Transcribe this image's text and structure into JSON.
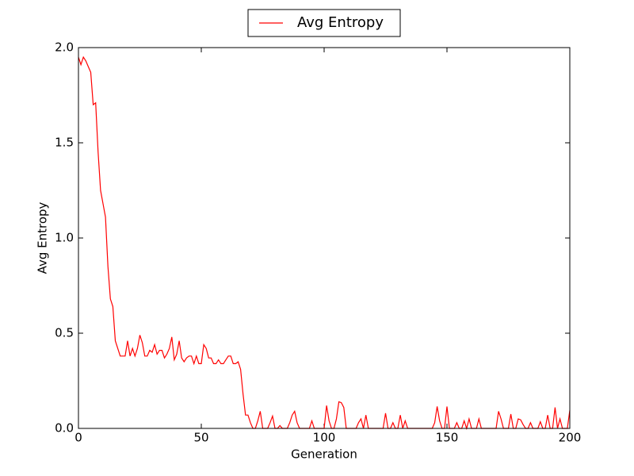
{
  "chart_data": {
    "type": "line",
    "x_label": "Generation",
    "y_label": "Avg Entropy",
    "x": [
      0,
      1,
      2,
      3,
      4,
      5,
      6,
      7,
      8,
      9,
      10,
      11,
      12,
      13,
      14,
      15,
      16,
      17,
      18,
      19,
      20,
      21,
      22,
      23,
      24,
      25,
      26,
      27,
      28,
      29,
      30,
      31,
      32,
      33,
      34,
      35,
      36,
      37,
      38,
      39,
      40,
      41,
      42,
      43,
      44,
      45,
      46,
      47,
      48,
      49,
      50,
      51,
      52,
      53,
      54,
      55,
      56,
      57,
      58,
      59,
      60,
      61,
      62,
      63,
      64,
      65,
      66,
      67,
      68,
      69,
      70,
      71,
      72,
      73,
      74,
      75,
      76,
      77,
      78,
      79,
      80,
      81,
      82,
      83,
      84,
      85,
      86,
      87,
      88,
      89,
      90,
      91,
      92,
      93,
      94,
      95,
      96,
      97,
      98,
      99,
      100,
      101,
      102,
      103,
      104,
      105,
      106,
      107,
      108,
      109,
      110,
      111,
      112,
      113,
      114,
      115,
      116,
      117,
      118,
      119,
      120,
      121,
      122,
      123,
      124,
      125,
      126,
      127,
      128,
      129,
      130,
      131,
      132,
      133,
      134,
      135,
      136,
      137,
      138,
      139,
      140,
      141,
      142,
      143,
      144,
      145,
      146,
      147,
      148,
      149,
      150,
      151,
      152,
      153,
      154,
      155,
      156,
      157,
      158,
      159,
      160,
      161,
      162,
      163,
      164,
      165,
      166,
      167,
      168,
      169,
      170,
      171,
      172,
      173,
      174,
      175,
      176,
      177,
      178,
      179,
      180,
      181,
      182,
      183,
      184,
      185,
      186,
      187,
      188,
      189,
      190,
      191,
      192,
      193,
      194,
      195,
      196,
      197,
      198,
      199,
      200
    ],
    "series": [
      {
        "name": "Avg Entropy",
        "color": "#ff0000",
        "values": [
          1.95,
          1.91,
          1.95,
          1.93,
          1.9,
          1.87,
          1.7,
          1.71,
          1.45,
          1.25,
          1.18,
          1.11,
          0.85,
          0.68,
          0.64,
          0.46,
          0.42,
          0.38,
          0.38,
          0.38,
          0.46,
          0.38,
          0.42,
          0.38,
          0.42,
          0.49,
          0.45,
          0.38,
          0.38,
          0.41,
          0.4,
          0.44,
          0.39,
          0.41,
          0.41,
          0.37,
          0.39,
          0.42,
          0.48,
          0.36,
          0.39,
          0.46,
          0.37,
          0.35,
          0.37,
          0.38,
          0.38,
          0.34,
          0.38,
          0.34,
          0.34,
          0.44,
          0.42,
          0.37,
          0.37,
          0.34,
          0.34,
          0.36,
          0.34,
          0.34,
          0.36,
          0.38,
          0.38,
          0.34,
          0.34,
          0.35,
          0.31,
          0.18,
          0.07,
          0.07,
          0.03,
          0,
          0,
          0.04,
          0.09,
          0,
          0,
          0,
          0.03,
          0.065,
          0,
          0,
          0.015,
          0,
          0,
          0,
          0.03,
          0.07,
          0.09,
          0.03,
          0,
          0,
          0,
          0,
          0,
          0.04,
          0,
          0,
          0,
          0,
          0,
          0.12,
          0.04,
          0,
          0,
          0.05,
          0.14,
          0.135,
          0.11,
          0,
          0,
          0,
          0,
          0,
          0.03,
          0.05,
          0,
          0.07,
          0,
          0,
          0,
          0,
          0,
          0,
          0,
          0.08,
          0,
          0,
          0.03,
          0,
          0,
          0.07,
          0,
          0.04,
          0,
          0,
          0,
          0,
          0,
          0,
          0,
          0,
          0,
          0,
          0,
          0.03,
          0.115,
          0.04,
          0,
          0,
          0.115,
          0,
          0,
          0,
          0.03,
          0,
          0,
          0.04,
          0,
          0.05,
          0,
          0,
          0,
          0.05,
          0,
          0,
          0,
          0,
          0,
          0,
          0,
          0.09,
          0.05,
          0,
          0,
          0,
          0.075,
          0,
          0,
          0.05,
          0.045,
          0.02,
          0,
          0,
          0.03,
          0,
          0,
          0,
          0.035,
          0,
          0,
          0.07,
          0,
          0,
          0.11,
          0,
          0.05,
          0,
          0,
          0,
          0.095
        ]
      }
    ],
    "xlim": [
      0,
      200
    ],
    "xticks": [
      0,
      50,
      100,
      150,
      200
    ],
    "ylim": [
      0,
      2
    ],
    "yticks": [
      {
        "value": 0,
        "label": "0.0"
      },
      {
        "value": 0.5,
        "label": "0.5"
      },
      {
        "value": 1,
        "label": "1.0"
      },
      {
        "value": 1.5,
        "label": "1.5"
      },
      {
        "value": 2,
        "label": "2.0"
      }
    ],
    "legend": "upper-center-outside",
    "grid": false
  }
}
